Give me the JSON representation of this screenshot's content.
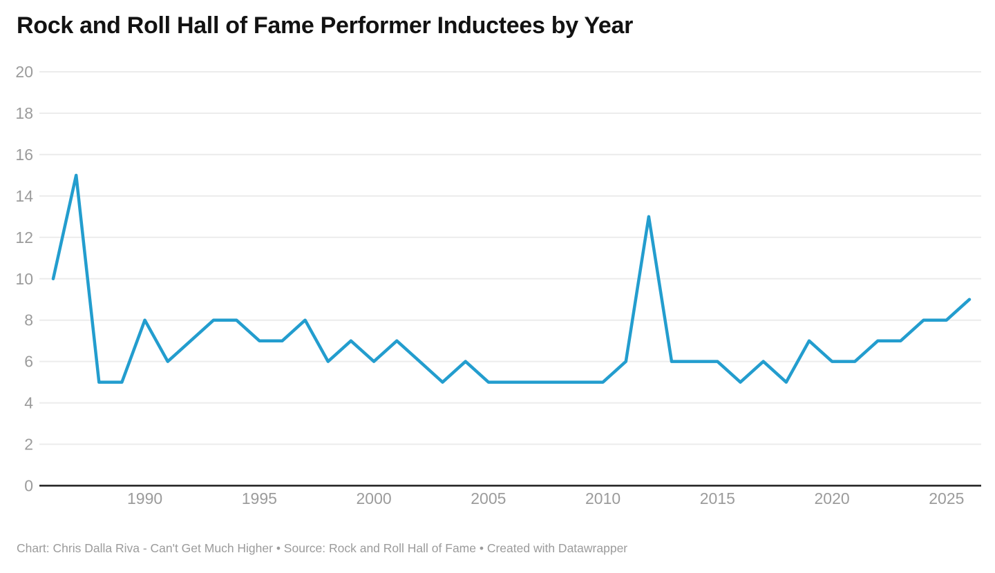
{
  "header": {
    "title": "Rock and Roll Hall of Fame Performer Inductees by Year"
  },
  "footer": {
    "text": "Chart: Chris Dalla Riva - Can't Get Much Higher • Source: Rock and Roll Hall of Fame • Created with Datawrapper"
  },
  "chart_data": {
    "type": "line",
    "title": "Rock and Roll Hall of Fame Performer Inductees by Year",
    "series_name": "Performer inductees",
    "x": [
      1986,
      1987,
      1988,
      1989,
      1990,
      1991,
      1992,
      1993,
      1994,
      1995,
      1996,
      1997,
      1998,
      1999,
      2000,
      2001,
      2002,
      2003,
      2004,
      2005,
      2006,
      2007,
      2008,
      2009,
      2010,
      2011,
      2012,
      2013,
      2014,
      2015,
      2016,
      2017,
      2018,
      2019,
      2020,
      2021,
      2022,
      2023,
      2024,
      2025,
      2026
    ],
    "values": [
      10,
      15,
      5,
      5,
      8,
      6,
      7,
      8,
      8,
      7,
      7,
      8,
      6,
      7,
      6,
      7,
      6,
      5,
      6,
      5,
      5,
      5,
      5,
      5,
      5,
      6,
      13,
      6,
      6,
      6,
      5,
      6,
      5,
      7,
      6,
      6,
      7,
      7,
      8,
      8,
      9
    ],
    "xlabel": "",
    "ylabel": "",
    "xlim": [
      1986,
      2026
    ],
    "ylim": [
      0,
      20
    ],
    "y_ticks": [
      0,
      2,
      4,
      6,
      8,
      10,
      12,
      14,
      16,
      18,
      20
    ],
    "x_ticks": [
      1990,
      1995,
      2000,
      2005,
      2010,
      2015,
      2020,
      2025
    ],
    "grid": "horizontal",
    "legend": "none",
    "colors": {
      "line": "#239dce",
      "grid": "#ececec",
      "axis_baseline": "#1a1a1a",
      "tick_labels": "#9b9b9b",
      "title": "#121212",
      "footer": "#9b9b9b",
      "background": "#ffffff"
    }
  }
}
